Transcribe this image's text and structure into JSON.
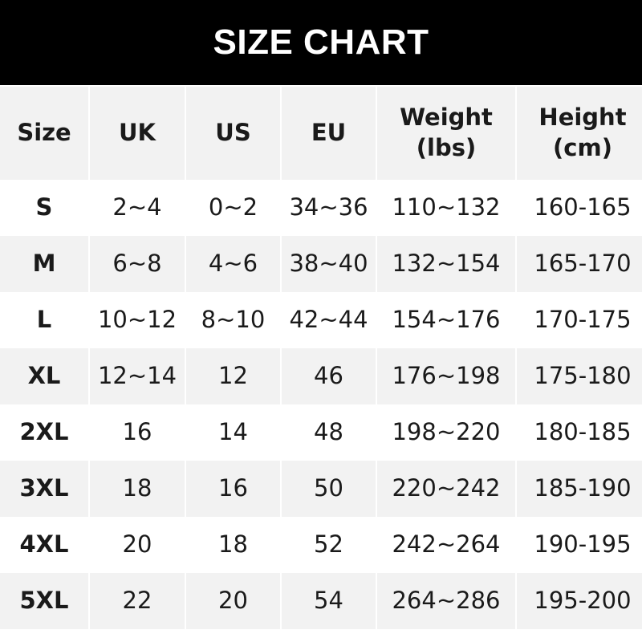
{
  "title": "SIZE CHART",
  "headers": [
    "Size",
    "UK",
    "US",
    "EU",
    "Weight\n(lbs)",
    "Height\n(cm)"
  ],
  "header_lines": [
    [
      "Size"
    ],
    [
      "UK"
    ],
    [
      "US"
    ],
    [
      "EU"
    ],
    [
      "Weight",
      "(lbs)"
    ],
    [
      "Height",
      "(cm)"
    ]
  ],
  "rows": [
    [
      "S",
      "2~4",
      "0~2",
      "34~36",
      "110~132",
      "160-165"
    ],
    [
      "M",
      "6~8",
      "4~6",
      "38~40",
      "132~154",
      "165-170"
    ],
    [
      "L",
      "10~12",
      "8~10",
      "42~44",
      "154~176",
      "170-175"
    ],
    [
      "XL",
      "12~14",
      "12",
      "46",
      "176~198",
      "175-180"
    ],
    [
      "2XL",
      "16",
      "14",
      "48",
      "198~220",
      "180-185"
    ],
    [
      "3XL",
      "18",
      "16",
      "50",
      "220~242",
      "185-190"
    ],
    [
      "4XL",
      "20",
      "18",
      "52",
      "242~264",
      "190-195"
    ],
    [
      "5XL",
      "22",
      "20",
      "54",
      "264~286",
      "195-200"
    ]
  ],
  "colors": {
    "title_bg": "#000000",
    "stripe": "#f2f2f2",
    "text": "#1a1a1a"
  }
}
